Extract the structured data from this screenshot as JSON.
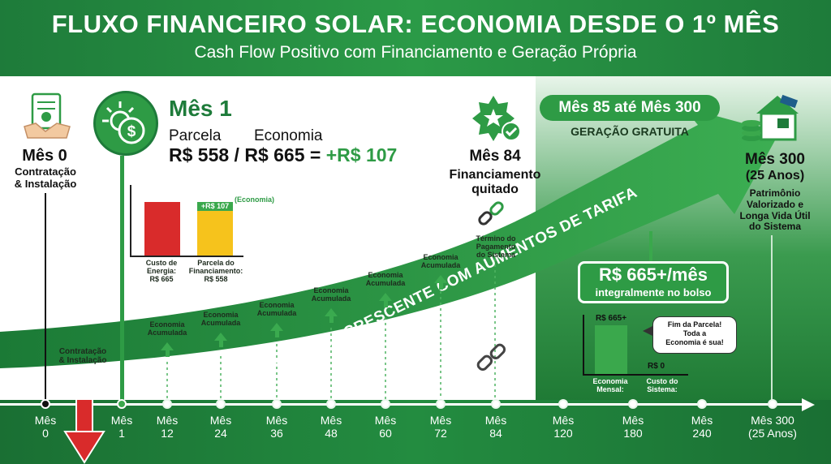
{
  "header": {
    "title": "FLUXO FINANCEIRO SOLAR: ECONOMIA DESDE O 1º MÊS",
    "subtitle": "Cash Flow Positivo com Financiamento e Geração Própria"
  },
  "month0": {
    "title": "Mês 0",
    "desc": "Contratação\n& Instalação"
  },
  "month1": {
    "title": "Mês 1",
    "parcela_label": "Parcela",
    "economia_label": "Economia",
    "equation": "R$ 558 / R$ 665 = ",
    "result": "+R$ 107"
  },
  "month84": {
    "title": "Mês 84",
    "desc": "Financiamento\nquitado"
  },
  "band": {
    "title": "Mês 85 até Mês 300",
    "subtitle": "GERAÇÃO GRATUITA"
  },
  "month300": {
    "title": "Mês 300",
    "years": "(25 Anos)",
    "desc": "Patrimônio\nValorizado e\nLonga Vida Útil\ndo Sistema"
  },
  "arrow_text": "ECONOMIA CRESCENTE COM AUMENTOS DE TARIFA",
  "termino": "Término do\nPagamento\ndo Sistema",
  "contratacao_small": "Contratação\n& Instalação",
  "economia_acumulada": "Economia\nAcumulada",
  "free_box": {
    "value": "R$ 665+/mês",
    "desc": "integralmente no bolso"
  },
  "chart_data": [
    {
      "type": "bar",
      "stacked": true,
      "categories": [
        "Custo de\nEnergia:\nR$ 665",
        "Parcela do\nFinanciamento:\nR$ 558"
      ],
      "values": [
        665,
        558
      ],
      "extra_label": "+R$ 107",
      "extra_value": 107,
      "extra_note": "(Economia)",
      "colors": {
        "energia": "#d92b2b",
        "parcela": "#f6c31c",
        "economia": "#3aa84c"
      }
    },
    {
      "type": "bar",
      "categories": [
        "Economia\nMensal:",
        "Custo do\nSistema:"
      ],
      "values": [
        665,
        0
      ],
      "value_labels": [
        "R$ 665+",
        "R$ 0"
      ],
      "colors": {
        "bar": "#3aa84c"
      }
    }
  ],
  "speech": "Fim da Parcela!\nToda a\nEconomia é sua!",
  "timeline": [
    {
      "label": "Mês\n0"
    },
    {
      "label": "Mês\n1"
    },
    {
      "label": "Mês\n12"
    },
    {
      "label": "Mês\n24"
    },
    {
      "label": "Mês\n36"
    },
    {
      "label": "Mês\n48"
    },
    {
      "label": "Mês\n60"
    },
    {
      "label": "Mês\n72"
    },
    {
      "label": "Mês\n84"
    },
    {
      "label": "Mês\n120"
    },
    {
      "label": "Mês\n180"
    },
    {
      "label": "Mês\n240"
    },
    {
      "label": "Mês 300\n(25 Anos)"
    }
  ],
  "colors": {
    "brand_green": "#2e9b45",
    "dark_green": "#1e7b3a",
    "red": "#d92b2b",
    "yellow": "#f6c31c"
  }
}
